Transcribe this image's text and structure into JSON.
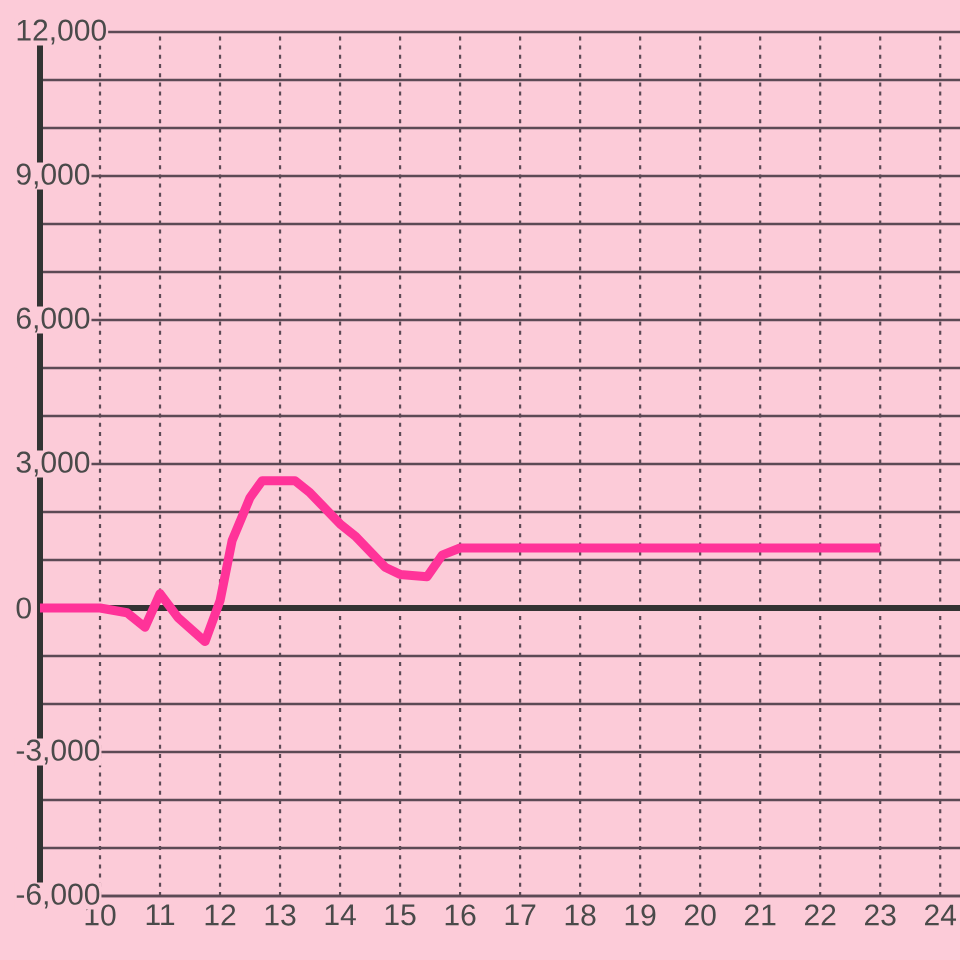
{
  "chart_data": {
    "type": "line",
    "x": [
      9,
      10,
      10.45,
      10.75,
      11,
      11.3,
      11.75,
      12,
      12.2,
      12.5,
      12.7,
      13.25,
      13.5,
      14,
      14.25,
      14.75,
      15,
      15.45,
      15.7,
      16,
      23
    ],
    "values": [
      0,
      0,
      -100,
      -400,
      300,
      -200,
      -700,
      150,
      1400,
      2300,
      2650,
      2650,
      2400,
      1750,
      1500,
      850,
      700,
      650,
      1100,
      1250,
      1250
    ],
    "color": "#ff3399",
    "line_style": "solid",
    "xlim": [
      9,
      24.33
    ],
    "ylim": [
      -6000,
      12000
    ],
    "xticks": [
      10,
      11,
      12,
      13,
      14,
      15,
      16,
      17,
      18,
      19,
      20,
      21,
      22,
      23,
      24
    ],
    "yticks": [
      {
        "value": -6000,
        "label": "-6,000"
      },
      {
        "value": -5000,
        "label": null
      },
      {
        "value": -4000,
        "label": null
      },
      {
        "value": -3000,
        "label": "-3,000"
      },
      {
        "value": -2000,
        "label": null
      },
      {
        "value": -1000,
        "label": null
      },
      0,
      {
        "value": 1000,
        "label": null
      },
      {
        "value": 2000,
        "label": null
      },
      {
        "value": 3000,
        "label": "3,000"
      },
      {
        "value": 4000,
        "label": null
      },
      {
        "value": 5000,
        "label": null
      },
      {
        "value": 6000,
        "label": "6,000"
      },
      {
        "value": 7000,
        "label": null
      },
      {
        "value": 8000,
        "label": null
      },
      {
        "value": 9000,
        "label": "9,000"
      },
      {
        "value": 10000,
        "label": null
      },
      {
        "value": 11000,
        "label": null
      },
      {
        "value": 12000,
        "label": "12,000"
      }
    ],
    "grid": true
  }
}
